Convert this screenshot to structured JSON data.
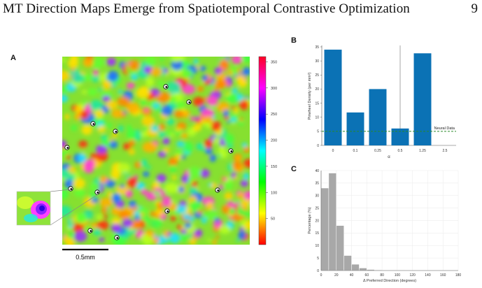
{
  "header": {
    "title": "MT Direction Maps Emerge from Spatiotemporal Contrastive Optimization",
    "page_number": "9"
  },
  "panels": {
    "a": "A",
    "b": "B",
    "c": "C"
  },
  "colorbar": {
    "ticks": [
      "350",
      "300",
      "250",
      "200",
      "150",
      "100",
      "50"
    ]
  },
  "scalebar": {
    "label": "0.5mm"
  },
  "chart_data": [
    {
      "type": "bar",
      "categories": [
        "0",
        "0.1",
        "0.25",
        "0.5",
        "1.25",
        "2.5"
      ],
      "values": [
        34,
        11.7,
        20,
        6,
        32.7,
        0
      ],
      "xlabel": "α",
      "ylabel": "Pinwheel Density (per mm²)",
      "ylim": [
        0,
        35
      ],
      "yticks": [
        0,
        5,
        10,
        15,
        20,
        25,
        30,
        35
      ],
      "reference_line": {
        "label": "Neural Data",
        "value": 5,
        "color": "#2a8a2a"
      },
      "highlight_category": "0.5",
      "bar_color": "#0b72b5"
    },
    {
      "type": "bar",
      "x": [
        0,
        10,
        20,
        30,
        40,
        50,
        60,
        70,
        80,
        90,
        100,
        110,
        120,
        130,
        140,
        150,
        160,
        170
      ],
      "values": [
        33,
        39,
        18,
        6,
        2.5,
        1,
        0.4,
        0.2,
        0.1,
        0.05,
        0.05,
        0,
        0,
        0,
        0,
        0,
        0,
        0
      ],
      "xlabel": "Δ Preferred Direction (degrees)",
      "ylabel": "Percentage (%)",
      "xlim": [
        0,
        180
      ],
      "ylim": [
        0,
        40
      ],
      "xticks": [
        0,
        20,
        40,
        60,
        80,
        100,
        120,
        140,
        160,
        180
      ],
      "yticks": [
        0,
        5,
        10,
        15,
        20,
        25,
        30,
        35,
        40
      ],
      "bar_color": "#a8a8a8"
    }
  ]
}
